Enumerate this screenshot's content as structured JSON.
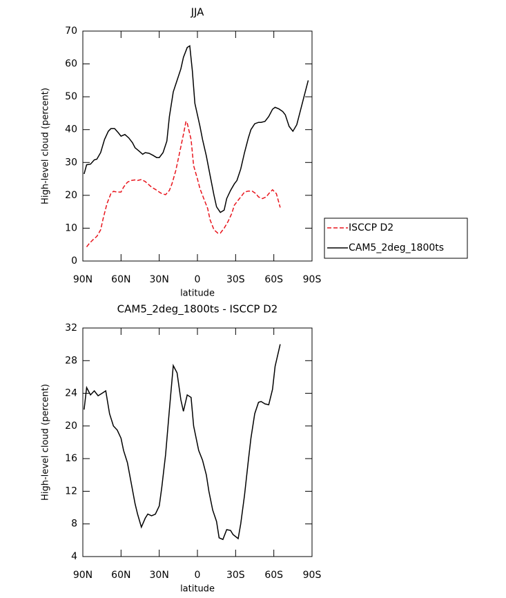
{
  "chart_data": [
    {
      "type": "line",
      "title": "JJA",
      "xlabel": "latitude",
      "ylabel": "High-level cloud (percent)",
      "xlim": [
        90,
        -90
      ],
      "ylim": [
        0,
        70
      ],
      "xticks": [
        {
          "value": 90,
          "label": "90N"
        },
        {
          "value": 60,
          "label": "60N"
        },
        {
          "value": 30,
          "label": "30N"
        },
        0,
        {
          "value": -30,
          "label": "30S"
        },
        {
          "value": -60,
          "label": "60S"
        },
        {
          "value": -90,
          "label": "90S"
        }
      ],
      "yticks": [
        0,
        10,
        20,
        30,
        40,
        50,
        60,
        70
      ],
      "legend": "right",
      "series": [
        {
          "name": "ISCCP D2",
          "color": "#e8141c",
          "dash": true,
          "x": [
            87,
            85,
            82,
            79,
            76,
            74,
            71,
            68,
            66,
            63,
            60,
            58,
            55,
            52,
            49,
            47,
            44,
            41,
            39,
            36,
            33,
            30,
            28,
            25,
            22,
            20,
            17,
            14,
            11,
            9,
            8,
            5,
            3,
            0,
            -2,
            -5,
            -8,
            -10,
            -13,
            -16,
            -18,
            -21,
            -24,
            -27,
            -29,
            -32,
            -35,
            -37,
            -40,
            -43,
            -46,
            -48,
            -51,
            -54,
            -56,
            -59,
            -62,
            -65
          ],
          "values": [
            4.3,
            5.3,
            6.5,
            7.5,
            9.5,
            13,
            17.5,
            20.5,
            21.2,
            21,
            21,
            22.5,
            24,
            24.5,
            24.7,
            24.5,
            24.8,
            24.2,
            23.5,
            22.5,
            21.8,
            21,
            20.5,
            20.2,
            21.5,
            23.5,
            27.5,
            33,
            38.5,
            42.5,
            42,
            37,
            29,
            25,
            22,
            19,
            16,
            12.5,
            9.5,
            8.5,
            8.5,
            10,
            12,
            14.5,
            17,
            18.5,
            20,
            21,
            21.3,
            21.3,
            20.5,
            19.5,
            19,
            19.5,
            20.5,
            21.7,
            20.5,
            16.3
          ]
        },
        {
          "name": "CAM5_2deg_1800ts",
          "color": "#000000",
          "dash": false,
          "x": [
            89,
            87,
            84,
            81,
            79,
            76,
            73,
            70,
            68,
            65,
            62,
            60,
            57,
            54,
            51,
            49,
            46,
            43,
            41,
            38,
            35,
            32,
            30,
            27,
            24,
            22,
            19,
            16,
            13,
            11,
            8,
            6,
            4,
            2,
            -2,
            -4,
            -7,
            -10,
            -13,
            -15,
            -18,
            -21,
            -23,
            -26,
            -29,
            -31,
            -34,
            -37,
            -40,
            -42,
            -45,
            -48,
            -50,
            -53,
            -56,
            -59,
            -61,
            -64,
            -67,
            -69,
            -72,
            -75,
            -78,
            -80,
            -83,
            -87
          ],
          "values": [
            26.5,
            29.3,
            29.5,
            30.8,
            31,
            33,
            37,
            39.5,
            40.3,
            40.3,
            39,
            38,
            38.5,
            37.5,
            36,
            34.5,
            33.5,
            32.5,
            33,
            32.8,
            32.2,
            31.5,
            31.5,
            33,
            36.5,
            44,
            51.5,
            55,
            58.5,
            62,
            65,
            65.5,
            58,
            48,
            41,
            37,
            32,
            26,
            20,
            16.5,
            14.8,
            15.5,
            19,
            21.5,
            23.5,
            24.5,
            28,
            33,
            37.5,
            40,
            41.8,
            42.2,
            42.2,
            42.5,
            44,
            46.2,
            46.8,
            46.3,
            45.5,
            44.5,
            41,
            39.5,
            41.5,
            44.5,
            49,
            55
          ]
        }
      ]
    },
    {
      "type": "line",
      "title": "CAM5_2deg_1800ts - ISCCP D2",
      "xlabel": "latitude",
      "ylabel": "High-level cloud (percent)",
      "xlim": [
        90,
        -90
      ],
      "ylim": [
        4,
        32
      ],
      "xticks": [
        {
          "value": 90,
          "label": "90N"
        },
        {
          "value": 60,
          "label": "60N"
        },
        {
          "value": 30,
          "label": "30N"
        },
        0,
        {
          "value": -30,
          "label": "30S"
        },
        {
          "value": -60,
          "label": "60S"
        },
        {
          "value": -90,
          "label": "90S"
        }
      ],
      "yticks": [
        4,
        8,
        12,
        16,
        20,
        24,
        28,
        32
      ],
      "series": [
        {
          "color": "#000000",
          "dash": false,
          "x": [
            89,
            87,
            84,
            81,
            78,
            75,
            72,
            69,
            66,
            63,
            60,
            58,
            55,
            52,
            49,
            47,
            44,
            41,
            39,
            36,
            33,
            30,
            28,
            25,
            22,
            19,
            16,
            13,
            11,
            8,
            5,
            3,
            -1,
            -4,
            -7,
            -9,
            -12,
            -15,
            -17,
            -20,
            -23,
            -26,
            -28,
            -32,
            -34,
            -37,
            -40,
            -42,
            -45,
            -48,
            -50,
            -53,
            -56,
            -59,
            -61,
            -65
          ],
          "values": [
            22,
            24.7,
            23.8,
            24.3,
            23.7,
            24,
            24.3,
            21.5,
            20,
            19.5,
            18.5,
            17,
            15.5,
            13,
            10.5,
            9.2,
            7.6,
            8.7,
            9.2,
            9,
            9.2,
            10.2,
            12.5,
            16.5,
            22,
            27.4,
            26.5,
            23.2,
            21.8,
            23.8,
            23.5,
            20,
            17,
            15.8,
            14,
            12,
            9.7,
            8.3,
            6.3,
            6.1,
            7.3,
            7.2,
            6.7,
            6.2,
            8,
            11.5,
            15.8,
            18.5,
            21.5,
            22.9,
            23,
            22.7,
            22.6,
            24.5,
            27.3,
            30
          ]
        }
      ]
    }
  ]
}
